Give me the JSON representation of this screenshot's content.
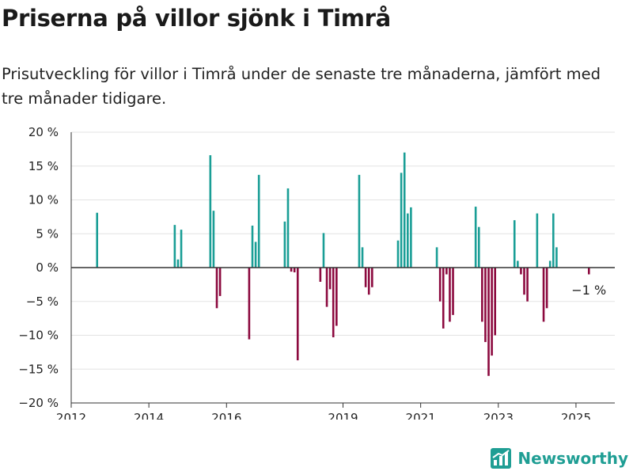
{
  "title": "Priserna på villor sjönk i Timrå",
  "subtitle": "Prisutveckling för villor i Timrå under de senaste tre månaderna, jämfört med tre månader tidigare.",
  "brand": {
    "name": "Newsworthy",
    "icon": "newsworthy-logo-icon"
  },
  "colors": {
    "positive": "#1a9e96",
    "negative": "#8c0a3f",
    "grid": "#e3e3e3",
    "axis": "#333333"
  },
  "chart_data": {
    "type": "bar",
    "ylim": [
      -20,
      20
    ],
    "yticks": [
      {
        "value": 20,
        "label": "20 %"
      },
      {
        "value": 15,
        "label": "15 %"
      },
      {
        "value": 10,
        "label": "10 %"
      },
      {
        "value": 5,
        "label": "5 %"
      },
      {
        "value": 0,
        "label": "0 %"
      },
      {
        "value": -5,
        "label": "−5 %"
      },
      {
        "value": -10,
        "label": "−10 %"
      },
      {
        "value": -15,
        "label": "−15 %"
      },
      {
        "value": -20,
        "label": "−20 %"
      }
    ],
    "xlim": [
      "2012-01",
      "2026-01"
    ],
    "xticks": [
      {
        "value": "2012-01",
        "label": "2012"
      },
      {
        "value": "2014-01",
        "label": "2014"
      },
      {
        "value": "2016-01",
        "label": "2016"
      },
      {
        "value": "2019-01",
        "label": "2019"
      },
      {
        "value": "2021-01",
        "label": "2021"
      },
      {
        "value": "2023-01",
        "label": "2023"
      },
      {
        "value": "2025-01",
        "label": "2025"
      }
    ],
    "grid": true,
    "x": [
      "2012-09",
      "2014-09",
      "2014-10",
      "2014-11",
      "2015-08",
      "2015-09",
      "2015-10",
      "2015-11",
      "2016-08",
      "2016-09",
      "2016-10",
      "2016-11",
      "2017-07",
      "2017-08",
      "2017-09",
      "2017-10",
      "2017-11",
      "2018-06",
      "2018-07",
      "2018-08",
      "2018-09",
      "2018-10",
      "2018-11",
      "2019-06",
      "2019-07",
      "2019-08",
      "2019-09",
      "2019-10",
      "2020-06",
      "2020-07",
      "2020-08",
      "2020-09",
      "2020-10",
      "2021-06",
      "2021-07",
      "2021-08",
      "2021-09",
      "2021-10",
      "2021-11",
      "2022-06",
      "2022-07",
      "2022-08",
      "2022-09",
      "2022-10",
      "2022-11",
      "2022-12",
      "2023-06",
      "2023-07",
      "2023-08",
      "2023-09",
      "2023-10",
      "2024-01",
      "2024-03",
      "2024-04",
      "2024-05",
      "2024-06",
      "2024-07",
      "2025-05"
    ],
    "values": [
      8.1,
      6.3,
      1.2,
      5.6,
      16.6,
      8.4,
      -6.0,
      -4.2,
      -10.6,
      6.2,
      3.8,
      13.7,
      6.8,
      11.7,
      -0.6,
      -0.7,
      -13.7,
      -2.1,
      5.1,
      -5.8,
      -3.2,
      -10.3,
      -8.6,
      13.7,
      3.0,
      -2.9,
      -4.0,
      -2.9,
      4.0,
      14.0,
      17.0,
      8.0,
      8.9,
      3.0,
      -5.0,
      -9.0,
      -1.0,
      -8.0,
      -7.0,
      9.0,
      6.0,
      -8.0,
      -11.0,
      -16.0,
      -13.0,
      -10.0,
      7.0,
      1.0,
      -1.0,
      -4.0,
      -5.0,
      8.0,
      -8.0,
      -6.0,
      1.0,
      8.0,
      3.0,
      -1.0
    ],
    "annotation": {
      "x": "2025-05",
      "text": "−1 %"
    }
  }
}
